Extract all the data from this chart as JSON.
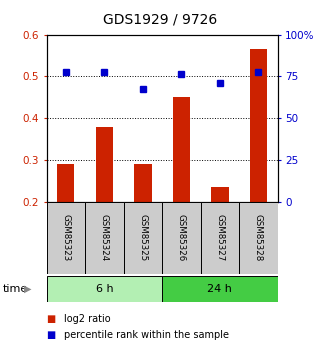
{
  "title": "GDS1929 / 9726",
  "samples": [
    "GSM85323",
    "GSM85324",
    "GSM85325",
    "GSM85326",
    "GSM85327",
    "GSM85328"
  ],
  "log2_ratio": [
    0.29,
    0.38,
    0.29,
    0.45,
    0.235,
    0.565
  ],
  "percentile_rank": [
    0.51,
    0.51,
    0.47,
    0.505,
    0.485,
    0.51
  ],
  "groups": [
    {
      "label": "6 h",
      "indices": [
        0,
        1,
        2
      ],
      "color": "#b3efb3"
    },
    {
      "label": "24 h",
      "indices": [
        3,
        4,
        5
      ],
      "color": "#44cc44"
    }
  ],
  "bar_color": "#cc2200",
  "dot_color": "#0000cc",
  "ylim_left": [
    0.2,
    0.6
  ],
  "ylim_right": [
    0,
    100
  ],
  "yticks_left": [
    0.2,
    0.3,
    0.4,
    0.5,
    0.6
  ],
  "yticks_right": [
    0,
    25,
    50,
    75,
    100
  ],
  "ytick_labels_left": [
    "0.2",
    "0.3",
    "0.4",
    "0.5",
    "0.6"
  ],
  "ytick_labels_right": [
    "0",
    "25",
    "50",
    "75",
    "100%"
  ],
  "dotted_lines": [
    0.3,
    0.4,
    0.5
  ],
  "legend_items": [
    {
      "label": "log2 ratio",
      "color": "#cc2200"
    },
    {
      "label": "percentile rank within the sample",
      "color": "#0000cc"
    }
  ],
  "bar_width": 0.45,
  "sample_box_color": "#cccccc",
  "title_fontsize": 10,
  "axis_fontsize": 7.5,
  "label_fontsize": 6.2,
  "group_fontsize": 8,
  "legend_fontsize": 7,
  "time_fontsize": 8
}
